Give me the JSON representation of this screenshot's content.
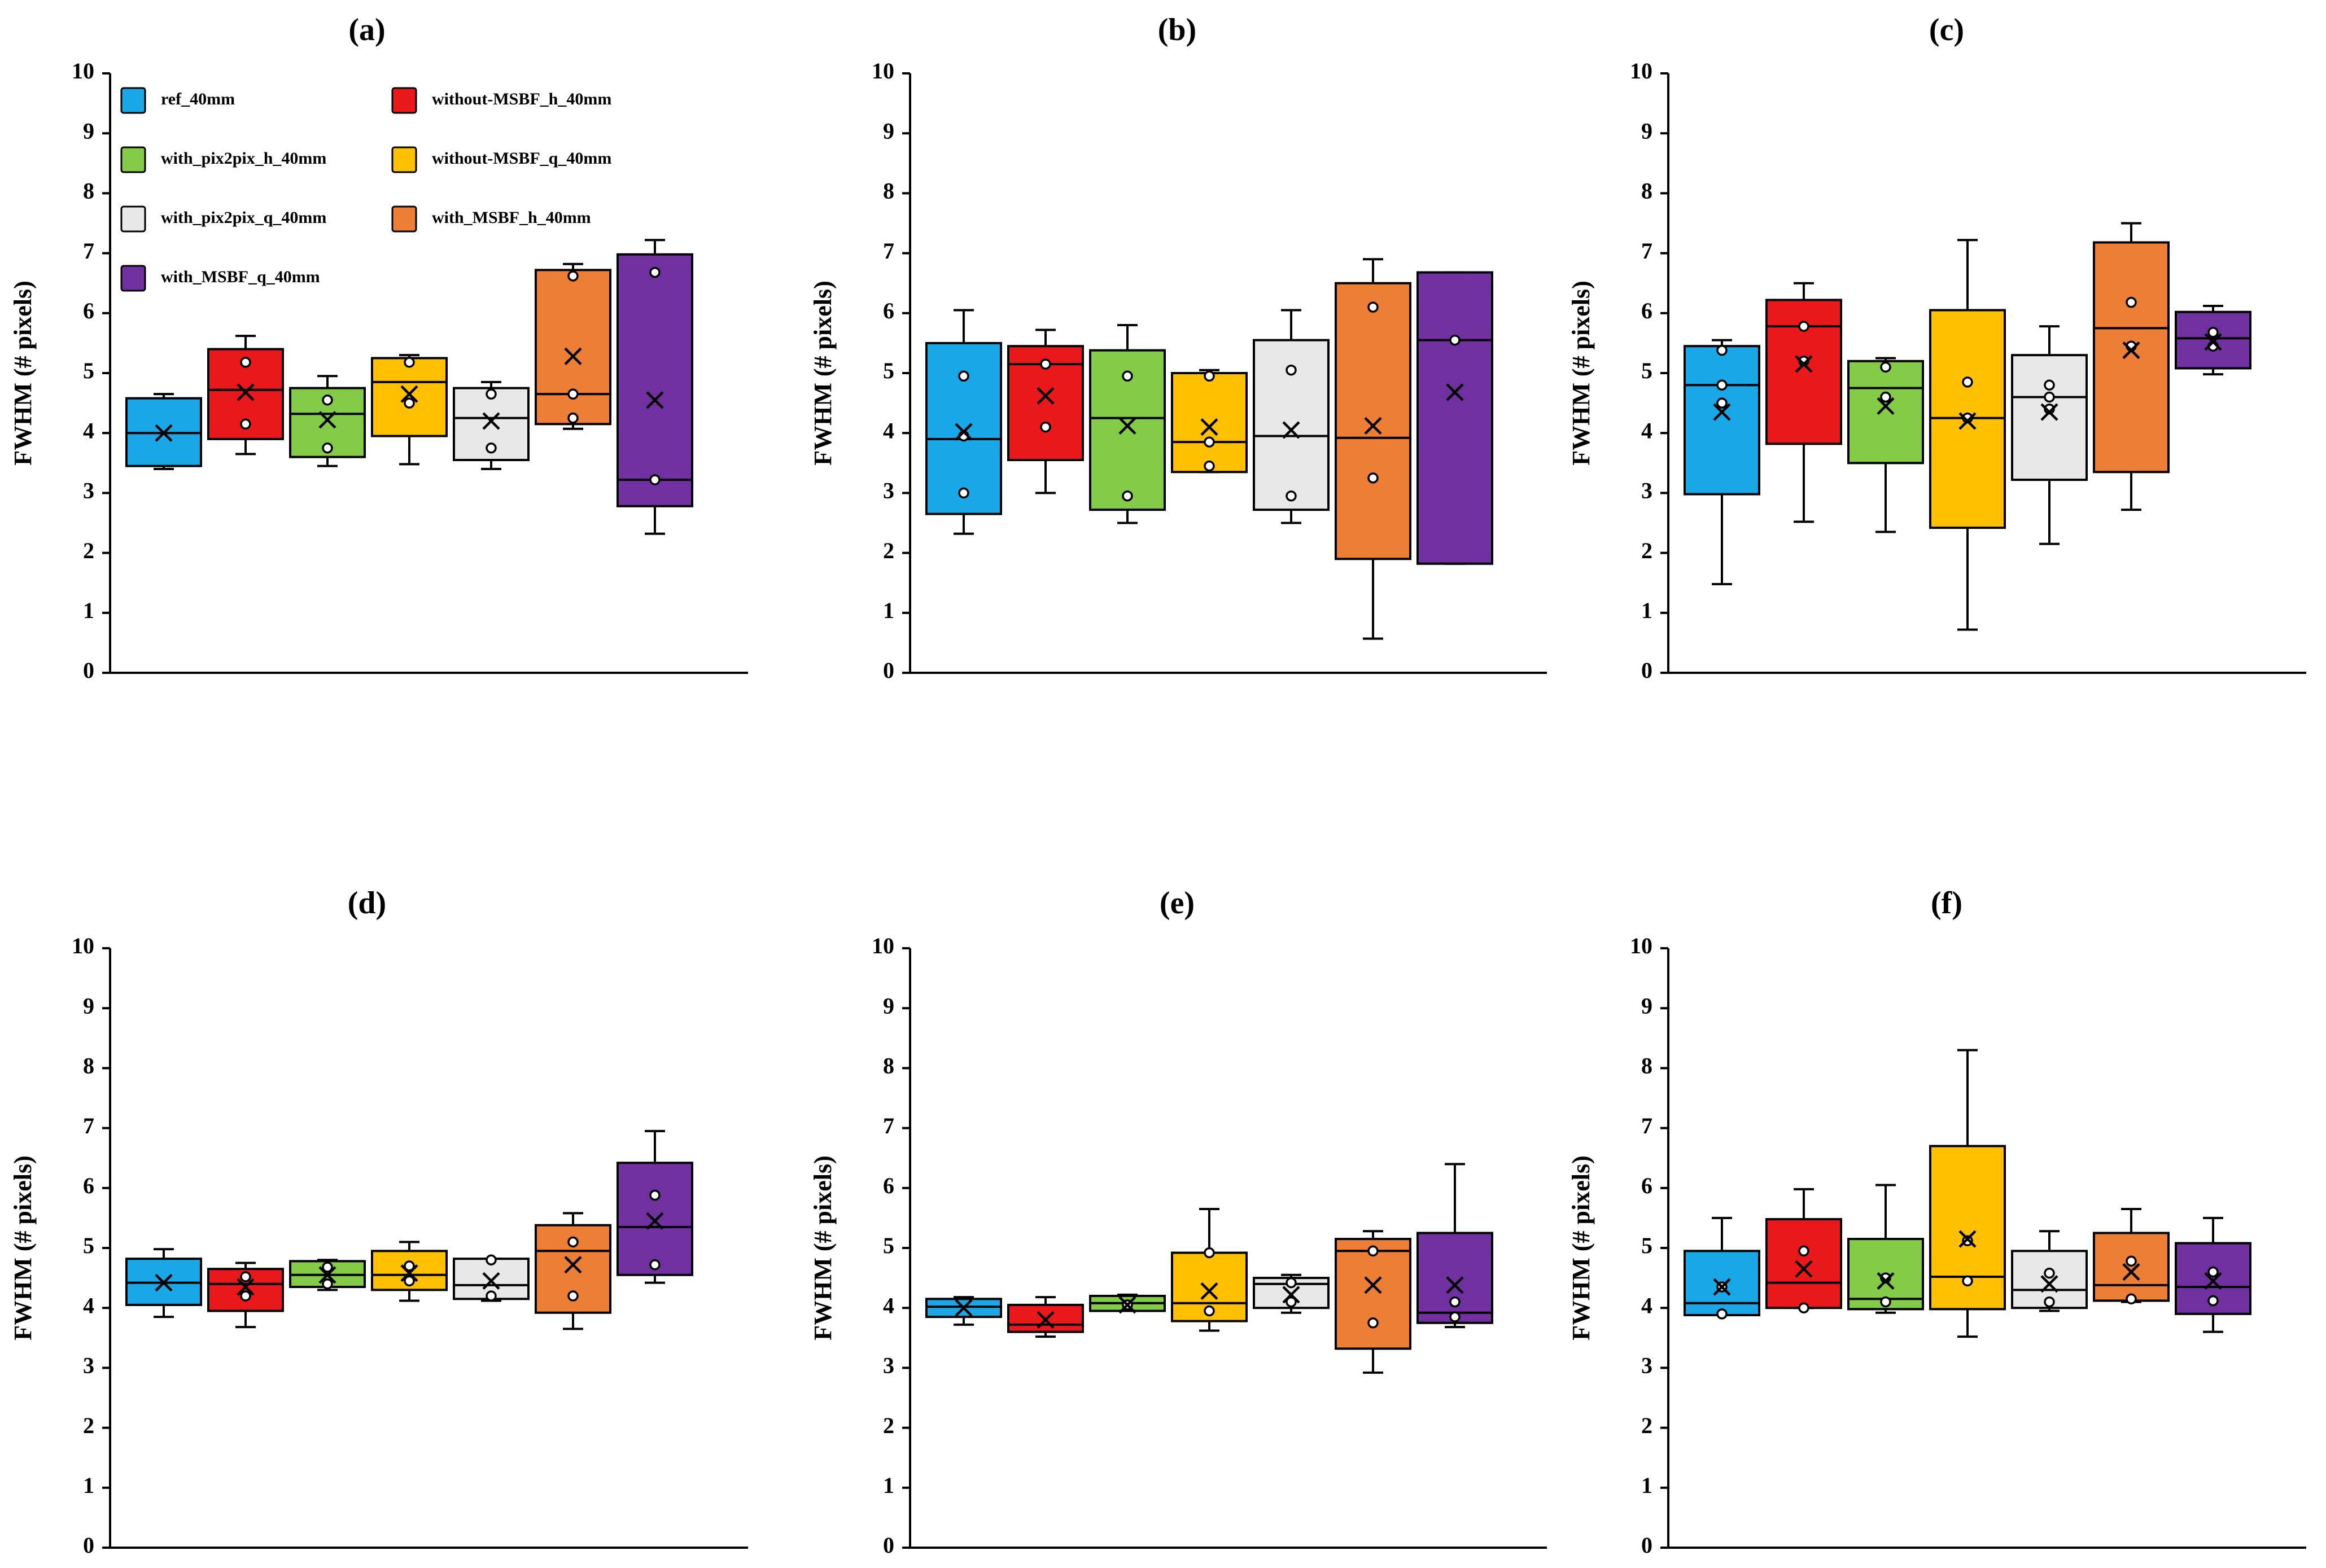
{
  "chart_data": [
    {
      "panel": "(a)",
      "type": "box",
      "ylabel": "FWHM (# pixels)",
      "ylim": [
        0,
        10
      ],
      "yticks": [
        "0",
        "1",
        "2",
        "3",
        "4",
        "5",
        "6",
        "7",
        "8",
        "9",
        "10"
      ],
      "boxes": [
        {
          "series": "ref_40mm",
          "color": "#1aa7e8",
          "wlo": 3.4,
          "q1": 3.45,
          "med": 4.0,
          "q3": 4.58,
          "whi": 4.65,
          "mean": 4.0,
          "points": []
        },
        {
          "series": "without-MSBF_h_40mm",
          "color": "#e8181b",
          "wlo": 3.65,
          "q1": 3.9,
          "med": 4.72,
          "q3": 5.4,
          "whi": 5.62,
          "mean": 4.68,
          "points": [
            4.15,
            5.18
          ]
        },
        {
          "series": "with_pix2pix_h_40mm",
          "color": "#84cc47",
          "wlo": 3.45,
          "q1": 3.6,
          "med": 4.32,
          "q3": 4.75,
          "whi": 4.95,
          "mean": 4.22,
          "points": [
            3.75,
            4.55
          ]
        },
        {
          "series": "without-MSBF_q_40mm",
          "color": "#ffc000",
          "wlo": 3.48,
          "q1": 3.95,
          "med": 4.85,
          "q3": 5.25,
          "whi": 5.3,
          "mean": 4.65,
          "points": [
            4.5,
            5.18
          ]
        },
        {
          "series": "with_pix2pix_q_40mm",
          "color": "#e8e8e8",
          "wlo": 3.4,
          "q1": 3.55,
          "med": 4.25,
          "q3": 4.75,
          "whi": 4.85,
          "mean": 4.2,
          "points": [
            3.75,
            4.65
          ]
        },
        {
          "series": "with_MSBF_h_40mm",
          "color": "#ec7e35",
          "wlo": 4.07,
          "q1": 4.15,
          "med": 4.65,
          "q3": 6.72,
          "whi": 6.82,
          "mean": 5.28,
          "points": [
            4.25,
            4.65,
            6.62
          ]
        },
        {
          "series": "with_MSBF_q_40mm",
          "color": "#7030a0",
          "wlo": 2.32,
          "q1": 2.78,
          "med": 3.22,
          "q3": 6.98,
          "whi": 7.22,
          "mean": 4.55,
          "points": [
            3.22,
            6.68
          ]
        }
      ]
    },
    {
      "panel": "(b)",
      "type": "box",
      "ylabel": "FWHM (# pixels)",
      "ylim": [
        0,
        10
      ],
      "yticks": [
        "0",
        "1",
        "2",
        "3",
        "4",
        "5",
        "6",
        "7",
        "8",
        "9",
        "10"
      ],
      "boxes": [
        {
          "series": "ref_40mm",
          "color": "#1aa7e8",
          "wlo": 2.32,
          "q1": 2.65,
          "med": 3.9,
          "q3": 5.5,
          "whi": 6.05,
          "mean": 4.02,
          "points": [
            3.0,
            3.95,
            4.95
          ]
        },
        {
          "series": "without-MSBF_h_40mm",
          "color": "#e8181b",
          "wlo": 3.0,
          "q1": 3.55,
          "med": 5.15,
          "q3": 5.45,
          "whi": 5.72,
          "mean": 4.62,
          "points": [
            4.1,
            5.15
          ]
        },
        {
          "series": "with_pix2pix_h_40mm",
          "color": "#84cc47",
          "wlo": 2.5,
          "q1": 2.72,
          "med": 4.25,
          "q3": 5.38,
          "whi": 5.8,
          "mean": 4.12,
          "points": [
            2.95,
            4.95
          ]
        },
        {
          "series": "without-MSBF_q_40mm",
          "color": "#ffc000",
          "wlo": 3.35,
          "q1": 3.35,
          "med": 3.85,
          "q3": 5.0,
          "whi": 5.05,
          "mean": 4.1,
          "points": [
            3.45,
            3.85,
            4.95
          ]
        },
        {
          "series": "with_pix2pix_q_40mm",
          "color": "#e8e8e8",
          "wlo": 2.5,
          "q1": 2.72,
          "med": 3.95,
          "q3": 5.55,
          "whi": 6.05,
          "mean": 4.05,
          "points": [
            2.95,
            5.05
          ]
        },
        {
          "series": "with_MSBF_h_40mm",
          "color": "#ec7e35",
          "wlo": 0.57,
          "q1": 1.9,
          "med": 3.92,
          "q3": 6.5,
          "whi": 6.9,
          "mean": 4.12,
          "points": [
            3.25,
            6.1
          ]
        },
        {
          "series": "with_MSBF_q_40mm",
          "color": "#7030a0",
          "wlo": 1.82,
          "q1": 1.82,
          "med": 5.55,
          "q3": 6.68,
          "whi": 6.68,
          "mean": 4.68,
          "points": [
            5.55
          ]
        }
      ]
    },
    {
      "panel": "(c)",
      "type": "box",
      "ylabel": "FWHM (# pixels)",
      "ylim": [
        0,
        10
      ],
      "yticks": [
        "0",
        "1",
        "2",
        "3",
        "4",
        "5",
        "6",
        "7",
        "8",
        "9",
        "10"
      ],
      "boxes": [
        {
          "series": "ref_40mm",
          "color": "#1aa7e8",
          "wlo": 1.48,
          "q1": 2.98,
          "med": 4.8,
          "q3": 5.45,
          "whi": 5.55,
          "mean": 4.35,
          "points": [
            4.5,
            4.8,
            5.38
          ]
        },
        {
          "series": "without-MSBF_h_40mm",
          "color": "#e8181b",
          "wlo": 2.52,
          "q1": 3.82,
          "med": 5.78,
          "q3": 6.22,
          "whi": 6.5,
          "mean": 5.15,
          "points": [
            5.2,
            5.78
          ]
        },
        {
          "series": "with_pix2pix_h_40mm",
          "color": "#84cc47",
          "wlo": 2.35,
          "q1": 3.5,
          "med": 4.75,
          "q3": 5.2,
          "whi": 5.25,
          "mean": 4.45,
          "points": [
            4.6,
            5.1
          ]
        },
        {
          "series": "without-MSBF_q_40mm",
          "color": "#ffc000",
          "wlo": 0.72,
          "q1": 2.42,
          "med": 4.25,
          "q3": 6.05,
          "whi": 7.22,
          "mean": 4.2,
          "points": [
            4.25,
            4.85
          ]
        },
        {
          "series": "with_pix2pix_q_40mm",
          "color": "#e8e8e8",
          "wlo": 2.15,
          "q1": 3.22,
          "med": 4.6,
          "q3": 5.3,
          "whi": 5.78,
          "mean": 4.35,
          "points": [
            4.4,
            4.6,
            4.8
          ]
        },
        {
          "series": "with_MSBF_h_40mm",
          "color": "#ec7e35",
          "wlo": 2.72,
          "q1": 3.35,
          "med": 5.75,
          "q3": 7.18,
          "whi": 7.5,
          "mean": 5.38,
          "points": [
            5.45,
            6.18
          ]
        },
        {
          "series": "with_MSBF_q_40mm",
          "color": "#7030a0",
          "wlo": 4.98,
          "q1": 5.08,
          "med": 5.58,
          "q3": 6.02,
          "whi": 6.12,
          "mean": 5.52,
          "points": [
            5.45,
            5.68
          ]
        }
      ]
    },
    {
      "panel": "(d)",
      "type": "box",
      "ylabel": "FWHM (# pixels)",
      "ylim": [
        0,
        10
      ],
      "yticks": [
        "0",
        "1",
        "2",
        "3",
        "4",
        "5",
        "6",
        "7",
        "8",
        "9",
        "10"
      ],
      "boxes": [
        {
          "series": "ref_40mm",
          "color": "#1aa7e8",
          "wlo": 3.85,
          "q1": 4.05,
          "med": 4.42,
          "q3": 4.82,
          "whi": 4.98,
          "mean": 4.42,
          "points": []
        },
        {
          "series": "without-MSBF_h_40mm",
          "color": "#e8181b",
          "wlo": 3.68,
          "q1": 3.95,
          "med": 4.4,
          "q3": 4.65,
          "whi": 4.75,
          "mean": 4.35,
          "points": [
            4.2,
            4.52
          ]
        },
        {
          "series": "with_pix2pix_h_40mm",
          "color": "#84cc47",
          "wlo": 4.3,
          "q1": 4.35,
          "med": 4.55,
          "q3": 4.78,
          "whi": 4.8,
          "mean": 4.55,
          "points": [
            4.4,
            4.68
          ]
        },
        {
          "series": "without-MSBF_q_40mm",
          "color": "#ffc000",
          "wlo": 4.12,
          "q1": 4.3,
          "med": 4.55,
          "q3": 4.95,
          "whi": 5.1,
          "mean": 4.58,
          "points": [
            4.45,
            4.7
          ]
        },
        {
          "series": "with_pix2pix_q_40mm",
          "color": "#e8e8e8",
          "wlo": 4.12,
          "q1": 4.15,
          "med": 4.38,
          "q3": 4.82,
          "whi": 4.82,
          "mean": 4.45,
          "points": [
            4.2,
            4.8
          ]
        },
        {
          "series": "with_MSBF_h_40mm",
          "color": "#ec7e35",
          "wlo": 3.65,
          "q1": 3.92,
          "med": 4.95,
          "q3": 5.38,
          "whi": 5.58,
          "mean": 4.72,
          "points": [
            4.2,
            5.1
          ]
        },
        {
          "series": "with_MSBF_q_40mm",
          "color": "#7030a0",
          "wlo": 4.42,
          "q1": 4.55,
          "med": 5.35,
          "q3": 6.42,
          "whi": 6.95,
          "mean": 5.45,
          "points": [
            4.72,
            5.88
          ]
        }
      ]
    },
    {
      "panel": "(e)",
      "type": "box",
      "ylabel": "FWHM (# pixels)",
      "ylim": [
        0,
        10
      ],
      "yticks": [
        "0",
        "1",
        "2",
        "3",
        "4",
        "5",
        "6",
        "7",
        "8",
        "9",
        "10"
      ],
      "boxes": [
        {
          "series": "ref_40mm",
          "color": "#1aa7e8",
          "wlo": 3.72,
          "q1": 3.85,
          "med": 4.02,
          "q3": 4.15,
          "whi": 4.18,
          "mean": 4.0,
          "points": []
        },
        {
          "series": "without-MSBF_h_40mm",
          "color": "#e8181b",
          "wlo": 3.52,
          "q1": 3.6,
          "med": 3.72,
          "q3": 4.05,
          "whi": 4.18,
          "mean": 3.8,
          "points": []
        },
        {
          "series": "with_pix2pix_h_40mm",
          "color": "#84cc47",
          "wlo": 3.95,
          "q1": 3.95,
          "med": 4.08,
          "q3": 4.2,
          "whi": 4.22,
          "mean": 4.05,
          "points": [
            4.05
          ]
        },
        {
          "series": "without-MSBF_q_40mm",
          "color": "#ffc000",
          "wlo": 3.62,
          "q1": 3.78,
          "med": 4.08,
          "q3": 4.92,
          "whi": 5.65,
          "mean": 4.28,
          "points": [
            3.95,
            4.92
          ]
        },
        {
          "series": "with_pix2pix_q_40mm",
          "color": "#e8e8e8",
          "wlo": 3.92,
          "q1": 4.0,
          "med": 4.4,
          "q3": 4.5,
          "whi": 4.55,
          "mean": 4.22,
          "points": [
            4.1,
            4.42
          ]
        },
        {
          "series": "with_MSBF_h_40mm",
          "color": "#ec7e35",
          "wlo": 2.92,
          "q1": 3.32,
          "med": 4.95,
          "q3": 5.15,
          "whi": 5.28,
          "mean": 4.38,
          "points": [
            3.75,
            4.95
          ]
        },
        {
          "series": "with_MSBF_q_40mm",
          "color": "#7030a0",
          "wlo": 3.68,
          "q1": 3.75,
          "med": 3.92,
          "q3": 5.25,
          "whi": 6.4,
          "mean": 4.38,
          "points": [
            3.85,
            4.1
          ]
        }
      ]
    },
    {
      "panel": "(f)",
      "type": "box",
      "ylabel": "FWHM (# pixels)",
      "ylim": [
        0,
        10
      ],
      "yticks": [
        "0",
        "1",
        "2",
        "3",
        "4",
        "5",
        "6",
        "7",
        "8",
        "9",
        "10"
      ],
      "boxes": [
        {
          "series": "ref_40mm",
          "color": "#1aa7e8",
          "wlo": 3.88,
          "q1": 3.88,
          "med": 4.08,
          "q3": 4.95,
          "whi": 5.5,
          "mean": 4.35,
          "points": [
            3.9,
            4.35
          ]
        },
        {
          "series": "without-MSBF_h_40mm",
          "color": "#e8181b",
          "wlo": 4.0,
          "q1": 4.0,
          "med": 4.42,
          "q3": 5.48,
          "whi": 5.98,
          "mean": 4.65,
          "points": [
            4.0,
            4.95
          ]
        },
        {
          "series": "with_pix2pix_h_40mm",
          "color": "#84cc47",
          "wlo": 3.92,
          "q1": 3.98,
          "med": 4.15,
          "q3": 5.15,
          "whi": 6.05,
          "mean": 4.45,
          "points": [
            4.1,
            4.5
          ]
        },
        {
          "series": "without-MSBF_q_40mm",
          "color": "#ffc000",
          "wlo": 3.52,
          "q1": 3.98,
          "med": 4.52,
          "q3": 6.7,
          "whi": 8.3,
          "mean": 5.15,
          "points": [
            4.45,
            5.12
          ]
        },
        {
          "series": "with_pix2pix_q_40mm",
          "color": "#e8e8e8",
          "wlo": 3.95,
          "q1": 4.0,
          "med": 4.3,
          "q3": 4.95,
          "whi": 5.28,
          "mean": 4.4,
          "points": [
            4.1,
            4.58
          ]
        },
        {
          "series": "with_MSBF_h_40mm",
          "color": "#ec7e35",
          "wlo": 4.1,
          "q1": 4.12,
          "med": 4.38,
          "q3": 5.25,
          "whi": 5.65,
          "mean": 4.6,
          "points": [
            4.15,
            4.78
          ]
        },
        {
          "series": "with_MSBF_q_40mm",
          "color": "#7030a0",
          "wlo": 3.6,
          "q1": 3.9,
          "med": 4.35,
          "q3": 5.08,
          "whi": 5.5,
          "mean": 4.45,
          "points": [
            4.12,
            4.6
          ]
        }
      ]
    }
  ],
  "legend": {
    "panel": "(a)",
    "entries": [
      {
        "label": "ref_40mm",
        "color": "#1aa7e8"
      },
      {
        "label": "without-MSBF_h_40mm",
        "color": "#e8181b"
      },
      {
        "label": "with_pix2pix_h_40mm",
        "color": "#84cc47"
      },
      {
        "label": "without-MSBF_q_40mm",
        "color": "#ffc000"
      },
      {
        "label": "with_pix2pix_q_40mm",
        "color": "#e8e8e8"
      },
      {
        "label": "with_MSBF_h_40mm",
        "color": "#ec7e35"
      },
      {
        "label": "with_MSBF_q_40mm",
        "color": "#7030a0"
      }
    ]
  }
}
